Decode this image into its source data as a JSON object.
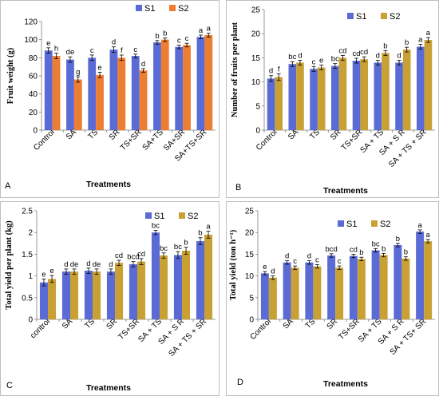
{
  "chart_data": [
    {
      "type": "bar",
      "panel_label": "A",
      "ylabel": "Fruit weight (g)",
      "xlabel": "Treatments",
      "ylim": [
        0,
        120
      ],
      "yticks": [
        0,
        20,
        40,
        60,
        80,
        100,
        120
      ],
      "categories": [
        "Control",
        "SA",
        "TS",
        "SR",
        "TS+SR",
        "SA+TS",
        "SA+SR",
        "SA+TS+SR"
      ],
      "series": [
        {
          "name": "S1",
          "color": "#5b6bd6",
          "values": [
            88,
            78,
            80,
            89,
            82,
            97,
            92,
            103
          ],
          "errors": [
            3,
            3,
            3,
            3,
            2,
            2,
            2,
            2
          ],
          "letters": [
            "e",
            "de",
            "c",
            "d",
            "c",
            "b",
            "c",
            "a"
          ]
        },
        {
          "name": "S2",
          "color": "#ed7d31",
          "values": [
            82,
            56,
            61,
            80,
            66,
            100,
            94,
            105
          ],
          "errors": [
            3,
            3,
            3,
            3,
            2,
            2,
            2,
            2
          ],
          "letters": [
            "h",
            "g",
            "e",
            "f",
            "d",
            "b",
            "c",
            "a"
          ]
        }
      ],
      "legend_position": "top-right"
    },
    {
      "type": "bar",
      "panel_label": "B",
      "ylabel": "Number of fruits per plant",
      "xlabel": "Treatments",
      "ylim": [
        0,
        25
      ],
      "yticks": [
        0,
        5,
        10,
        15,
        20,
        25
      ],
      "categories": [
        "Control",
        "SA",
        "TS",
        "SR",
        "TS+SR",
        "SA + TS",
        "SA + S R",
        "SA + TS + SR"
      ],
      "series": [
        {
          "name": "S1",
          "color": "#5b6bd6",
          "values": [
            10.7,
            13.7,
            12.7,
            13.3,
            14.4,
            14,
            14,
            17.3
          ],
          "errors": [
            0.6,
            0.5,
            0.5,
            0.5,
            0.5,
            0.5,
            0.5,
            0.5
          ],
          "letters": [
            "d",
            "bc",
            "c",
            "bc",
            "cd",
            "d",
            "d",
            "a"
          ]
        },
        {
          "name": "S2",
          "color": "#c9a033",
          "values": [
            11,
            14,
            13,
            15,
            14.7,
            16,
            16.7,
            18.7
          ],
          "errors": [
            0.7,
            0.5,
            0.5,
            0.5,
            0.5,
            0.5,
            0.5,
            0.5
          ],
          "letters": [
            "f",
            "d",
            "e",
            "cd",
            "cd",
            "b",
            "b",
            "a"
          ]
        }
      ],
      "legend_position": "top-right"
    },
    {
      "type": "bar",
      "panel_label": "C",
      "ylabel": "Total yield per plant (kg)",
      "xlabel": "Treatments",
      "ylim": [
        0,
        2.5
      ],
      "yticks": [
        0,
        0.5,
        1,
        1.5,
        2,
        2.5
      ],
      "categories": [
        "control",
        "SA",
        "TS",
        "SR",
        "TS+SR",
        "SA + TS",
        "SA + S R",
        "SA + TS + SR"
      ],
      "series": [
        {
          "name": "S1",
          "color": "#5b6bd6",
          "values": [
            0.85,
            1.1,
            1.12,
            1.1,
            1.27,
            2.0,
            1.48,
            1.8
          ],
          "errors": [
            0.08,
            0.06,
            0.06,
            0.06,
            0.06,
            0.05,
            0.08,
            0.08
          ],
          "letters": [
            "e",
            "d",
            "d",
            "d",
            "bcd",
            "bc",
            "bc",
            "b"
          ]
        },
        {
          "name": "S2",
          "color": "#c9a033",
          "values": [
            0.93,
            1.1,
            1.1,
            1.3,
            1.33,
            1.47,
            1.58,
            1.95
          ],
          "errors": [
            0.08,
            0.06,
            0.06,
            0.06,
            0.07,
            0.06,
            0.08,
            0.08
          ],
          "letters": [
            "e",
            "de",
            "de",
            "cd",
            "cd",
            "bc",
            "b",
            "a"
          ]
        }
      ],
      "legend_position": "top-right"
    },
    {
      "type": "bar",
      "panel_label": "D",
      "ylabel": "Total yield (ton h⁻¹)",
      "xlabel": "Treatments",
      "ylim": [
        0,
        25
      ],
      "yticks": [
        0,
        5,
        10,
        15,
        20,
        25
      ],
      "categories": [
        "Control",
        "SA",
        "TS",
        "SR",
        "TS+SR",
        "SA + TS",
        "SA + S R",
        "SA + TS+ SR"
      ],
      "series": [
        {
          "name": "S1",
          "color": "#5b6bd6",
          "values": [
            10.6,
            13.1,
            13.1,
            14.7,
            14.6,
            15.9,
            17.1,
            20.2
          ],
          "errors": [
            0.4,
            0.4,
            0.4,
            0.4,
            0.4,
            0.4,
            0.4,
            0.4
          ],
          "letters": [
            "e",
            "d",
            "d",
            "bcd",
            "cd",
            "bc",
            "b",
            "a"
          ]
        },
        {
          "name": "S2",
          "color": "#c9a033",
          "values": [
            9.6,
            11.9,
            12.2,
            11.9,
            13.9,
            14.8,
            14.0,
            18.0
          ],
          "errors": [
            0.4,
            0.4,
            0.4,
            0.4,
            0.4,
            0.4,
            0.4,
            0.4
          ],
          "letters": [
            "d",
            "c",
            "c",
            "c",
            "b",
            "b",
            "b",
            "a"
          ]
        }
      ],
      "legend_position": "top-right"
    }
  ]
}
